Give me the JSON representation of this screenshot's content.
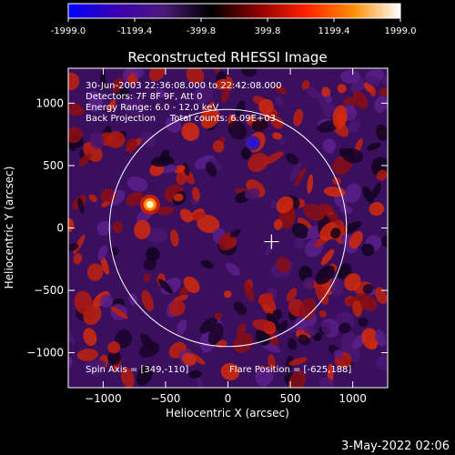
{
  "colorbar": {
    "ticks": [
      "-1999.0",
      "-1199.4",
      "-399.8",
      "399.8",
      "1199.4",
      "1999.0"
    ],
    "colors": [
      "#0000ff",
      "#3a00b0",
      "#4a1a7a",
      "#000000",
      "#8a0000",
      "#ff2000",
      "#ff8c00",
      "#ffffff"
    ]
  },
  "chart_data": {
    "type": "heatmap",
    "title": "Reconstructed RHESSI Image",
    "xlabel": "Heliocentric X (arcsec)",
    "ylabel": "Heliocentric Y (arcsec)",
    "xlim": [
      -1280,
      1280
    ],
    "ylim": [
      -1280,
      1280
    ],
    "xticks": [
      -1000,
      -500,
      0,
      500,
      1000
    ],
    "yticks": [
      -1000,
      -500,
      0,
      500,
      1000
    ],
    "color_range": [
      -1999.0,
      1999.0
    ],
    "info_lines": [
      "30-Jun-2003 22:36:08.000 to 22:42:08.000",
      "Detectors: 7F 8F 9F, Att 0",
      "Energy Range: 6.0 - 12.0 keV",
      "Back Projection     Total counts: 6.09E+03"
    ],
    "spin_axis_label": "Spin Axis = [349,-110]",
    "flare_position_label": "Flare Position = [-625,188]",
    "spin_axis": [
      349,
      -110
    ],
    "flare_position": [
      -625,
      188
    ],
    "solar_radius_arcsec": 950,
    "limb_color": "#ffffff"
  },
  "footer": {
    "date": "3-May-2022 02:06"
  }
}
